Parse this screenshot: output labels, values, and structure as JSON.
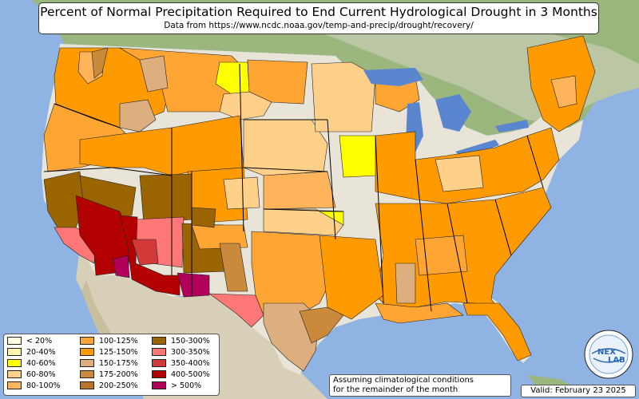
{
  "title": "Percent of Normal Precipitation Required to End Current Hydrological Drought in 3 Months",
  "subtitle": "Data from https://www.ncdc.noaa.gov/temp-and-precip/drought/recovery/",
  "legend": {
    "items": [
      {
        "label": "< 20%",
        "color": "#fffde0"
      },
      {
        "label": "20-40%",
        "color": "#fff7a8"
      },
      {
        "label": "40-60%",
        "color": "#ffff00"
      },
      {
        "label": "60-80%",
        "color": "#ffd08a"
      },
      {
        "label": "80-100%",
        "color": "#ffb45c"
      },
      {
        "label": "100-125%",
        "color": "#ffa533"
      },
      {
        "label": "125-150%",
        "color": "#ff9a00"
      },
      {
        "label": "150-175%",
        "color": "#ddae7e"
      },
      {
        "label": "175-200%",
        "color": "#c98a3c"
      },
      {
        "label": "200-250%",
        "color": "#b8742a"
      },
      {
        "label": "150-300%",
        "color": "#9a6500"
      },
      {
        "label": "300-350%",
        "color": "#ff7777"
      },
      {
        "label": "350-400%",
        "color": "#d23a3a"
      },
      {
        "label": "400-500%",
        "color": "#b30000"
      },
      {
        "label": "> 500%",
        "color": "#b0005a"
      }
    ]
  },
  "note": {
    "line1": "Assuming climatological conditions",
    "line2": "for the remainder of the month"
  },
  "valid": "Valid: February 23 2025",
  "logo": {
    "line1": "NEX",
    "line2": "LAB"
  },
  "colors": {
    "ocean": "#8fb3e3",
    "land_neutral": "#e8e5d8",
    "land_north": "#9cb77e",
    "mexico": "#d7cfb7",
    "lake": "#5a86cf"
  }
}
